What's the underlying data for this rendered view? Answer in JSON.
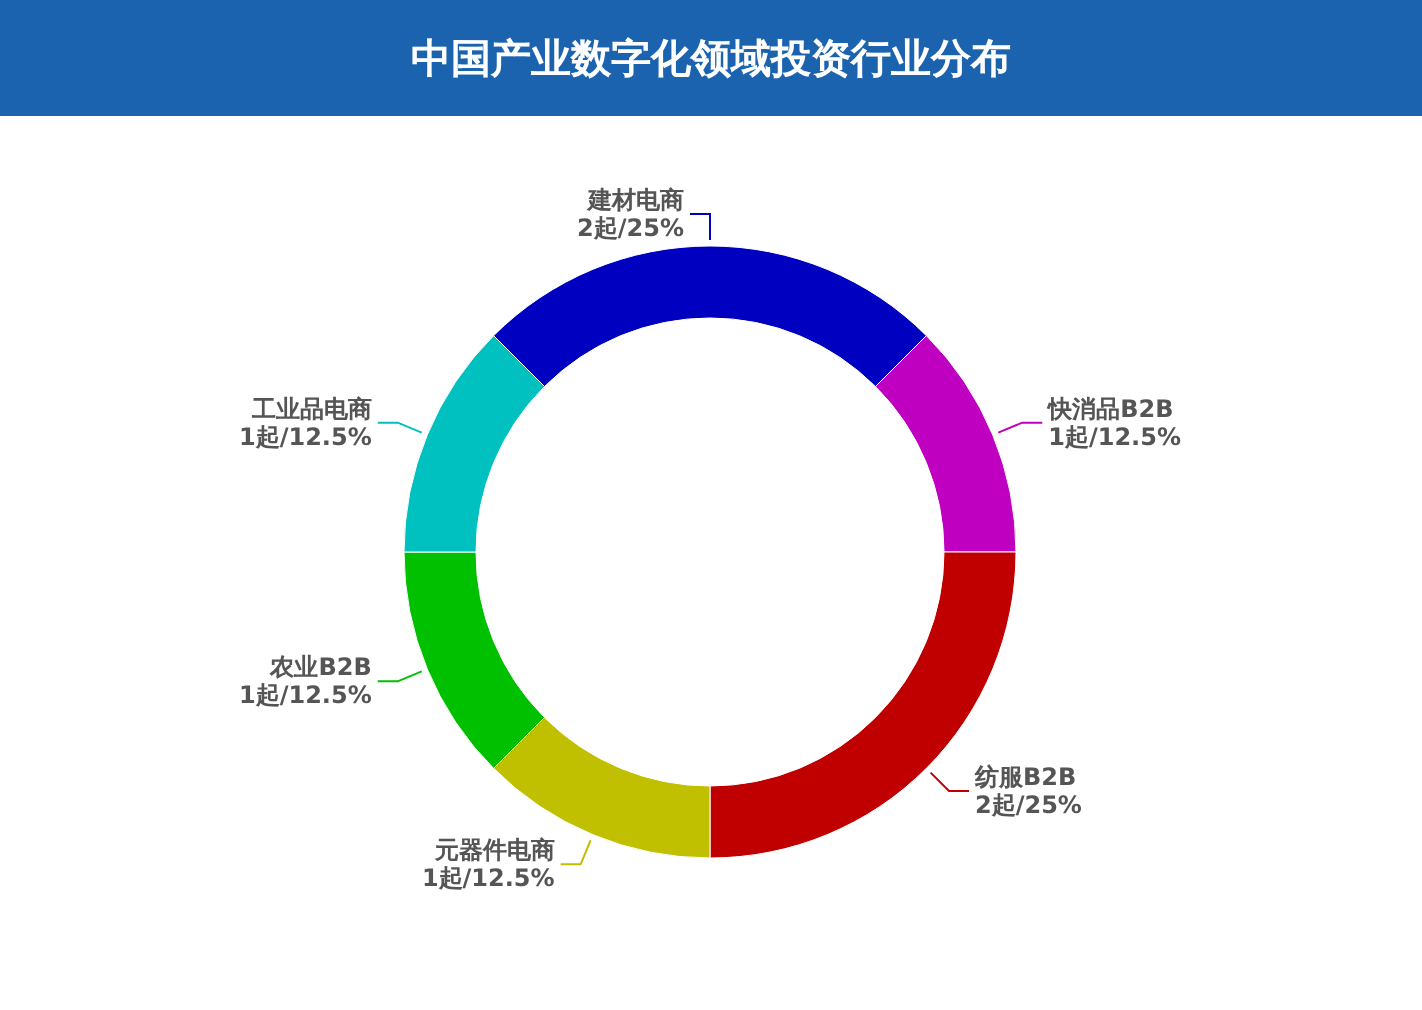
{
  "chart_data": {
    "type": "donut",
    "title": "中国产业数字化领域投资行业分布",
    "categories": [
      "快消品B2B",
      "纺服B2B",
      "元器件电商",
      "农业B2B",
      "工业品电商",
      "建材电商"
    ],
    "values": [
      1,
      2,
      1,
      1,
      1,
      2
    ],
    "colors": [
      "#c000c0",
      "#c00000",
      "#c0c000",
      "#00c000",
      "#00c0c0",
      "#0000c0"
    ],
    "value_labels": [
      "1起/12.5%",
      "2起/25%",
      "1起/12.5%",
      "1起/12.5%",
      "1起/12.5%",
      "2起/25%"
    ]
  }
}
